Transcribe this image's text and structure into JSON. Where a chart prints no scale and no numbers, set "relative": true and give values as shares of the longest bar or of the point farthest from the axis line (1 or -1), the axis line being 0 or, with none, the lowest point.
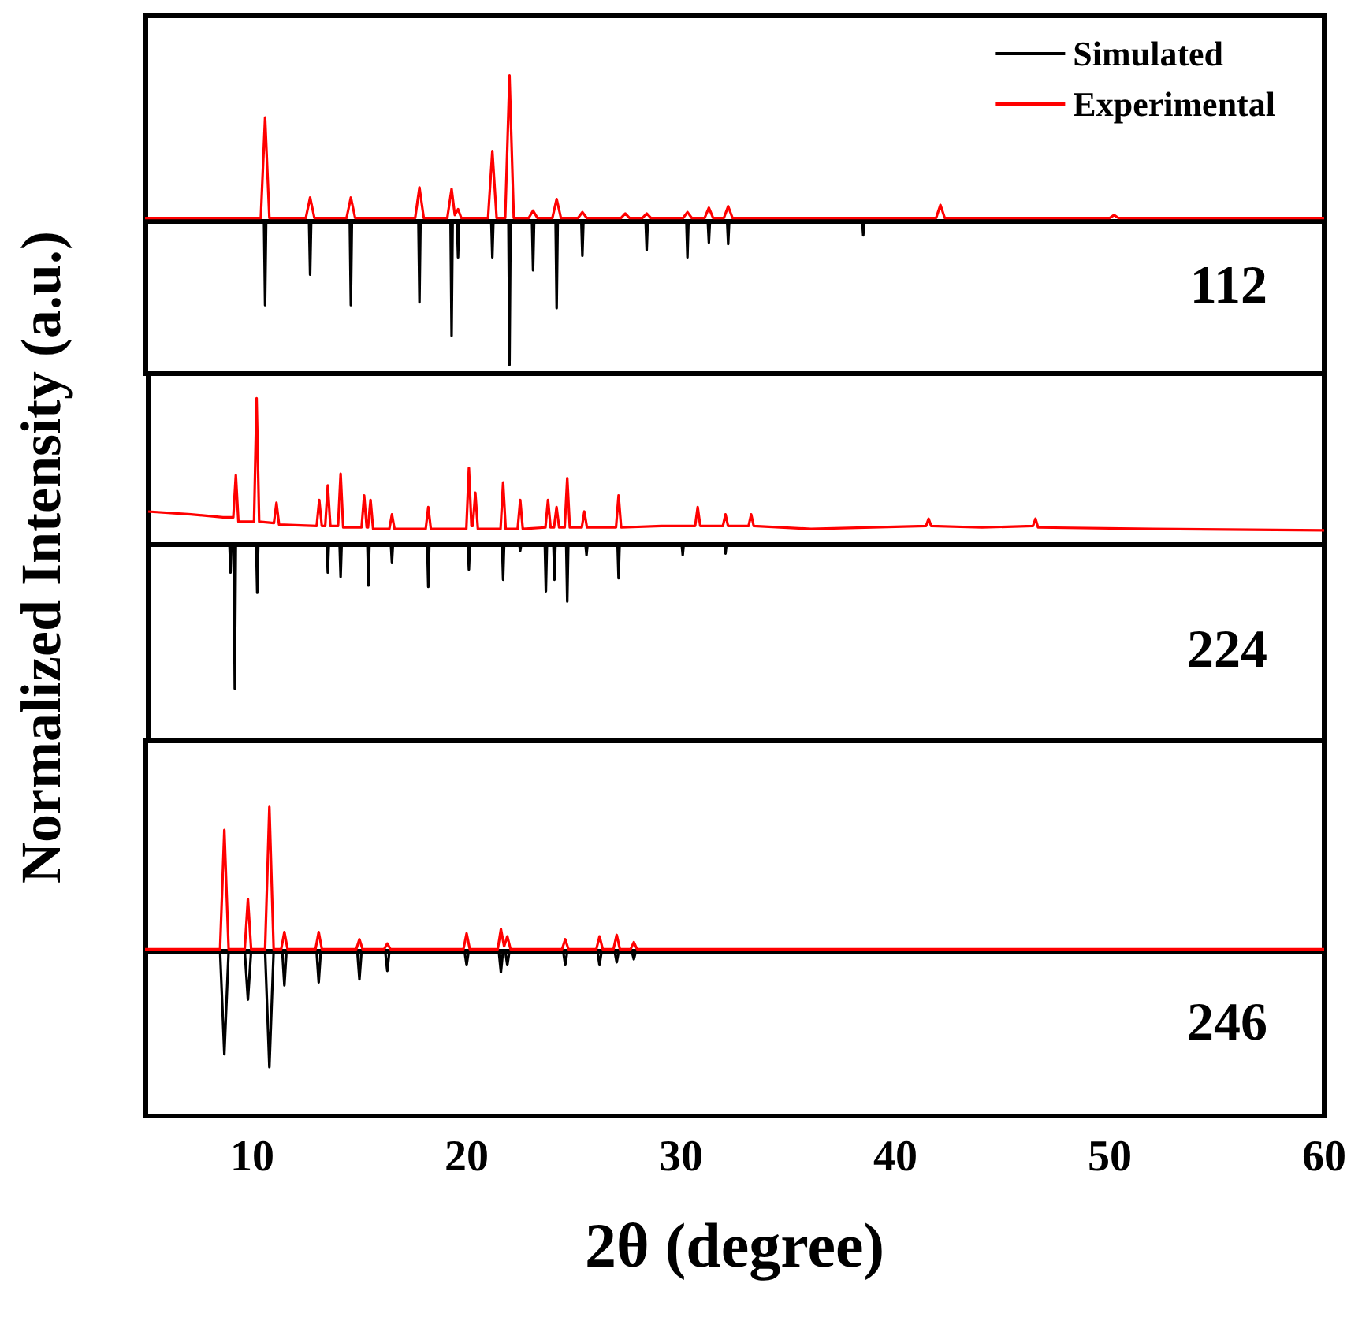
{
  "chart_data": [
    {
      "type": "line",
      "relative": true,
      "xlim": [
        5,
        60
      ],
      "tick_labels": false,
      "legend": "top right",
      "marker": "none",
      "annotations": [
        "112"
      ],
      "series": [
        {
          "name": "Simulated",
          "color": "#000000",
          "x": [
            5,
            10.55,
            10.6,
            10.65,
            12.65,
            12.7,
            12.75,
            14.55,
            14.6,
            14.65,
            17.75,
            17.8,
            17.85,
            19.25,
            19.3,
            19.35,
            19.55,
            19.6,
            19.65,
            21.15,
            21.2,
            21.25,
            21.95,
            22.0,
            22.05,
            23.05,
            23.1,
            23.15,
            24.15,
            24.2,
            24.25,
            25.35,
            25.4,
            25.45,
            28.35,
            28.4,
            28.45,
            30.25,
            30.3,
            30.35,
            31.25,
            31.3,
            31.35,
            32.15,
            32.2,
            32.25,
            38.45,
            38.5,
            38.55,
            60
          ],
          "values": [
            0,
            0,
            -0.58,
            0,
            0,
            -0.37,
            0,
            0,
            -0.58,
            0,
            0,
            -0.56,
            0,
            0,
            -0.79,
            0,
            0,
            -0.25,
            0,
            0,
            -0.25,
            0,
            0,
            -0.99,
            0,
            0,
            -0.34,
            0,
            0,
            -0.6,
            0,
            0,
            -0.24,
            0,
            0,
            -0.2,
            0,
            0,
            -0.25,
            0,
            0,
            -0.15,
            0,
            0,
            -0.16,
            0,
            0,
            -0.1,
            0,
            0
          ]
        },
        {
          "name": "Experimental",
          "color": "#ff0000",
          "x": [
            5,
            10.4,
            10.6,
            10.8,
            12.5,
            12.7,
            12.9,
            14.4,
            14.6,
            14.8,
            17.6,
            17.8,
            18.0,
            19.1,
            19.3,
            19.45,
            19.6,
            19.75,
            21.0,
            21.2,
            21.4,
            21.8,
            22.0,
            22.2,
            22.9,
            23.1,
            23.3,
            24.0,
            24.2,
            24.4,
            25.2,
            25.4,
            25.6,
            27.2,
            27.4,
            27.6,
            28.2,
            28.4,
            28.6,
            30.1,
            30.3,
            30.5,
            31.1,
            31.3,
            31.5,
            32.0,
            32.2,
            32.4,
            41.9,
            42.1,
            42.3,
            50.0,
            50.2,
            50.4,
            60
          ],
          "values": [
            0.02,
            0.02,
            0.71,
            0.02,
            0.02,
            0.16,
            0.02,
            0.02,
            0.16,
            0.02,
            0.02,
            0.23,
            0.02,
            0.02,
            0.22,
            0.04,
            0.08,
            0.02,
            0.02,
            0.48,
            0.02,
            0.02,
            1,
            0.02,
            0.02,
            0.07,
            0.02,
            0.02,
            0.15,
            0.02,
            0.02,
            0.06,
            0.02,
            0.02,
            0.05,
            0.02,
            0.02,
            0.05,
            0.02,
            0.02,
            0.06,
            0.02,
            0.02,
            0.09,
            0.02,
            0.02,
            0.1,
            0.02,
            0.02,
            0.11,
            0.02,
            0.02,
            0.04,
            0.02,
            0.02
          ]
        }
      ]
    },
    {
      "type": "line",
      "relative": true,
      "xlim": [
        5,
        60
      ],
      "tick_labels": false,
      "ylabel": "Normalized Intensity (a.u.)",
      "marker": "none",
      "annotations": [
        "224"
      ],
      "series": [
        {
          "color": "#000000",
          "x": [
            5,
            8.8,
            8.85,
            8.9,
            9.0,
            9.05,
            9.1,
            10.05,
            10.1,
            10.15,
            13.35,
            13.4,
            13.45,
            13.95,
            14.0,
            14.05,
            15.25,
            15.3,
            15.35,
            16.35,
            16.4,
            16.45,
            18.05,
            18.1,
            18.15,
            19.95,
            20.0,
            20.05,
            21.55,
            21.6,
            21.65,
            22.35,
            22.4,
            22.45,
            23.55,
            23.6,
            23.65,
            23.95,
            24.0,
            24.05,
            24.55,
            24.6,
            24.65,
            25.45,
            25.5,
            25.55,
            26.95,
            27.0,
            27.05,
            29.95,
            30.0,
            30.05,
            31.95,
            32.0,
            32.05,
            60
          ],
          "values": [
            0,
            0,
            -0.2,
            0,
            0,
            -1,
            0,
            0,
            -0.34,
            0,
            0,
            -0.2,
            0,
            0,
            -0.23,
            0,
            0,
            -0.29,
            0,
            0,
            -0.13,
            0,
            0,
            -0.3,
            0,
            0,
            -0.18,
            0,
            0,
            -0.25,
            0,
            0,
            -0.05,
            0,
            0,
            -0.33,
            0,
            0,
            -0.25,
            0,
            0,
            -0.4,
            0,
            0,
            -0.08,
            0,
            0,
            -0.24,
            0,
            0,
            -0.08,
            0,
            0,
            -0.07,
            0,
            0
          ]
        },
        {
          "color": "#ff0000",
          "x": [
            5,
            7,
            8.5,
            8.98,
            9.1,
            9.22,
            9.95,
            10.07,
            10.19,
            10.88,
            11.0,
            11.12,
            12.88,
            13.0,
            13.12,
            13.28,
            13.4,
            13.52,
            13.88,
            14.0,
            14.12,
            14.98,
            15.1,
            15.22,
            15.28,
            15.4,
            15.52,
            16.28,
            16.4,
            16.52,
            17.98,
            18.1,
            18.22,
            19.88,
            20.0,
            20.12,
            20.18,
            20.3,
            20.42,
            21.48,
            21.6,
            21.72,
            22.28,
            22.4,
            22.52,
            23.58,
            23.7,
            23.82,
            23.98,
            24.1,
            24.22,
            24.48,
            24.6,
            24.72,
            25.28,
            25.4,
            25.52,
            26.88,
            27.0,
            27.12,
            29.0,
            30.58,
            30.7,
            30.82,
            31.88,
            32.0,
            32.12,
            33.08,
            33.2,
            33.32,
            36,
            41.38,
            41.5,
            41.62,
            44,
            46.38,
            46.5,
            46.62,
            52,
            60
          ],
          "values": [
            0.22,
            0.2,
            0.18,
            0.18,
            0.47,
            0.15,
            0.15,
            1,
            0.15,
            0.14,
            0.28,
            0.13,
            0.12,
            0.3,
            0.12,
            0.12,
            0.4,
            0.12,
            0.12,
            0.48,
            0.11,
            0.11,
            0.33,
            0.11,
            0.11,
            0.3,
            0.1,
            0.1,
            0.2,
            0.1,
            0.1,
            0.25,
            0.1,
            0.1,
            0.52,
            0.12,
            0.12,
            0.35,
            0.1,
            0.1,
            0.42,
            0.1,
            0.1,
            0.3,
            0.1,
            0.11,
            0.3,
            0.11,
            0.11,
            0.25,
            0.11,
            0.11,
            0.45,
            0.11,
            0.11,
            0.22,
            0.11,
            0.11,
            0.33,
            0.11,
            0.12,
            0.12,
            0.25,
            0.12,
            0.12,
            0.2,
            0.12,
            0.12,
            0.2,
            0.12,
            0.1,
            0.12,
            0.17,
            0.12,
            0.11,
            0.12,
            0.17,
            0.11,
            0.1,
            0.09
          ]
        }
      ]
    },
    {
      "type": "line",
      "relative": true,
      "xlim": [
        5,
        60
      ],
      "xticks": [
        10,
        20,
        30,
        40,
        50,
        60
      ],
      "tick_labels": "x",
      "xlabel": "2θ (degree)",
      "marker": "none",
      "annotations": [
        "246"
      ],
      "series": [
        {
          "color": "#000000",
          "x": [
            5,
            8.5,
            8.7,
            8.9,
            9.65,
            9.8,
            9.95,
            10.6,
            10.8,
            11.0,
            11.4,
            11.5,
            11.6,
            13.0,
            13.1,
            13.2,
            14.9,
            15.0,
            15.1,
            16.2,
            16.3,
            16.4,
            19.9,
            20.0,
            20.1,
            21.5,
            21.6,
            21.7,
            21.8,
            21.9,
            22.0,
            24.5,
            24.6,
            24.7,
            26.1,
            26.2,
            26.3,
            26.9,
            27.0,
            27.1,
            27.7,
            27.8,
            27.9,
            60
          ],
          "values": [
            0,
            0,
            -0.72,
            0,
            0,
            -0.34,
            0,
            0,
            -0.81,
            0,
            0,
            -0.24,
            0,
            0,
            -0.22,
            0,
            0,
            -0.2,
            0,
            0,
            -0.14,
            0,
            0,
            -0.1,
            0,
            0,
            -0.15,
            0,
            0,
            -0.1,
            0,
            0,
            -0.1,
            0,
            0,
            -0.1,
            0,
            0,
            -0.08,
            0,
            0,
            -0.06,
            0,
            0
          ]
        },
        {
          "color": "#ff0000",
          "x": [
            5,
            8.5,
            8.7,
            8.9,
            9.65,
            9.8,
            9.95,
            10.6,
            10.8,
            11.0,
            11.35,
            11.5,
            11.65,
            12.95,
            13.1,
            13.25,
            14.85,
            15.0,
            15.15,
            16.15,
            16.3,
            16.45,
            19.85,
            20.0,
            20.15,
            21.45,
            21.6,
            21.75,
            21.8,
            21.9,
            22.05,
            24.45,
            24.6,
            24.75,
            26.05,
            26.2,
            26.35,
            26.85,
            27.0,
            27.15,
            27.65,
            27.8,
            27.95,
            60
          ],
          "values": [
            0.01,
            0.01,
            0.84,
            0.01,
            0.01,
            0.36,
            0.01,
            0.01,
            1,
            0.01,
            0.01,
            0.13,
            0.01,
            0.01,
            0.13,
            0.01,
            0.01,
            0.08,
            0.01,
            0.01,
            0.05,
            0.01,
            0.01,
            0.12,
            0.01,
            0.01,
            0.15,
            0.03,
            0.03,
            0.1,
            0.01,
            0.01,
            0.08,
            0.01,
            0.01,
            0.1,
            0.01,
            0.01,
            0.11,
            0.01,
            0.01,
            0.06,
            0.01,
            0.01
          ]
        }
      ]
    }
  ]
}
